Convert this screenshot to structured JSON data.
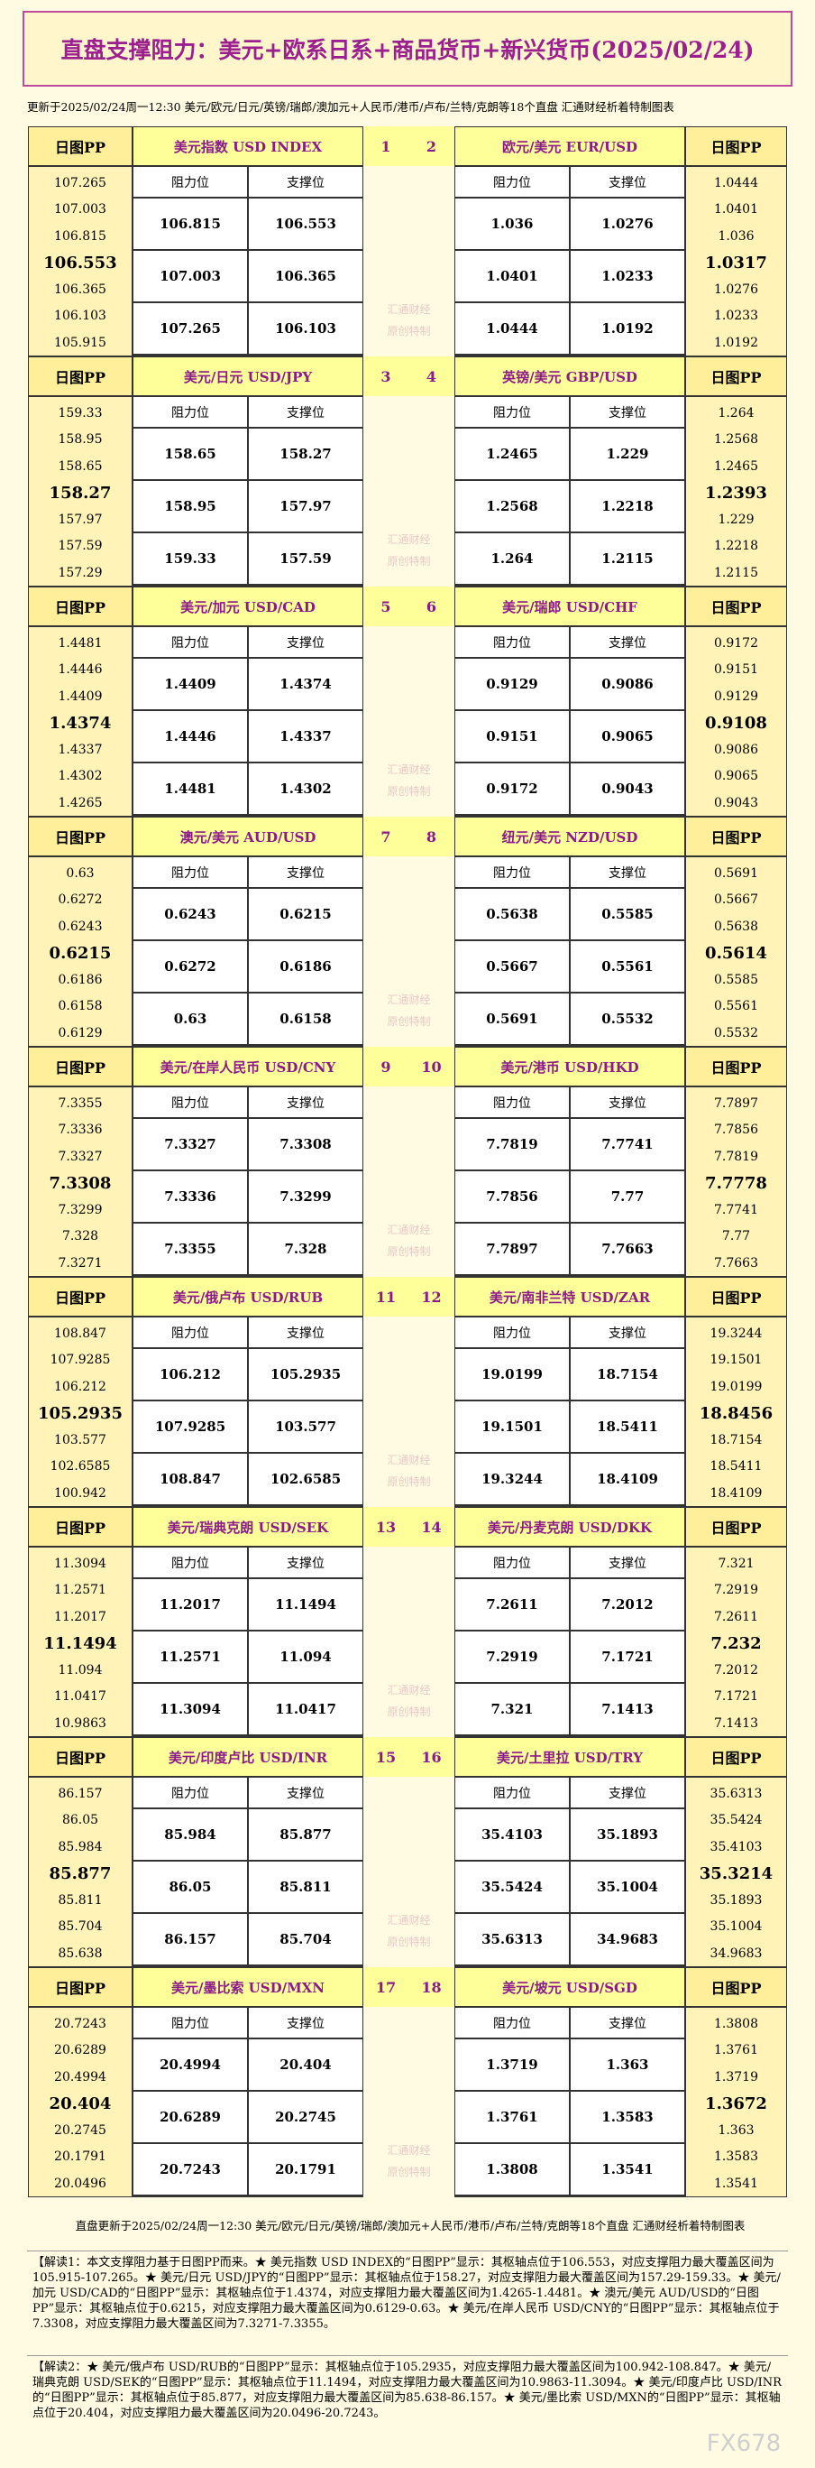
{
  "header": {
    "title": "直盘支撑阻力：美元+欧系日系+商品货币+新兴货币(2025/02/24)",
    "update": "更新于2025/02/24周一12:30 美元/欧元/日元/英镑/瑞郎/澳加元+人民币/港币/卢布/兰特/克朗等18个直盘 汇通财经析着特制图表"
  },
  "labels": {
    "pp": "日图PP",
    "resist": "阻力位",
    "support": "支撑位"
  },
  "watermark": [
    "汇通财经",
    "原创特制"
  ],
  "blocks": [
    {
      "left": {
        "num": "1",
        "name": "美元指数 USD INDEX",
        "pp": [
          "107.265",
          "107.003",
          "106.815",
          "106.553",
          "106.365",
          "106.103",
          "105.915"
        ],
        "resist": [
          "106.815",
          "107.003",
          "107.265"
        ],
        "support": [
          "106.553",
          "106.365",
          "106.103"
        ]
      },
      "right": {
        "num": "2",
        "name": "欧元/美元 EUR/USD",
        "pp": [
          "1.0444",
          "1.0401",
          "1.036",
          "1.0317",
          "1.0276",
          "1.0233",
          "1.0192"
        ],
        "resist": [
          "1.036",
          "1.0401",
          "1.0444"
        ],
        "support": [
          "1.0276",
          "1.0233",
          "1.0192"
        ]
      }
    },
    {
      "left": {
        "num": "3",
        "name": "美元/日元 USD/JPY",
        "pp": [
          "159.33",
          "158.95",
          "158.65",
          "158.27",
          "157.97",
          "157.59",
          "157.29"
        ],
        "resist": [
          "158.65",
          "158.95",
          "159.33"
        ],
        "support": [
          "158.27",
          "157.97",
          "157.59"
        ]
      },
      "right": {
        "num": "4",
        "name": "英镑/美元 GBP/USD",
        "pp": [
          "1.264",
          "1.2568",
          "1.2465",
          "1.2393",
          "1.229",
          "1.2218",
          "1.2115"
        ],
        "resist": [
          "1.2465",
          "1.2568",
          "1.264"
        ],
        "support": [
          "1.229",
          "1.2218",
          "1.2115"
        ]
      }
    },
    {
      "left": {
        "num": "5",
        "name": "美元/加元 USD/CAD",
        "pp": [
          "1.4481",
          "1.4446",
          "1.4409",
          "1.4374",
          "1.4337",
          "1.4302",
          "1.4265"
        ],
        "resist": [
          "1.4409",
          "1.4446",
          "1.4481"
        ],
        "support": [
          "1.4374",
          "1.4337",
          "1.4302"
        ]
      },
      "right": {
        "num": "6",
        "name": "美元/瑞郎 USD/CHF",
        "pp": [
          "0.9172",
          "0.9151",
          "0.9129",
          "0.9108",
          "0.9086",
          "0.9065",
          "0.9043"
        ],
        "resist": [
          "0.9129",
          "0.9151",
          "0.9172"
        ],
        "support": [
          "0.9086",
          "0.9065",
          "0.9043"
        ]
      }
    },
    {
      "left": {
        "num": "7",
        "name": "澳元/美元 AUD/USD",
        "pp": [
          "0.63",
          "0.6272",
          "0.6243",
          "0.6215",
          "0.6186",
          "0.6158",
          "0.6129"
        ],
        "resist": [
          "0.6243",
          "0.6272",
          "0.63"
        ],
        "support": [
          "0.6215",
          "0.6186",
          "0.6158"
        ]
      },
      "right": {
        "num": "8",
        "name": "纽元/美元 NZD/USD",
        "pp": [
          "0.5691",
          "0.5667",
          "0.5638",
          "0.5614",
          "0.5585",
          "0.5561",
          "0.5532"
        ],
        "resist": [
          "0.5638",
          "0.5667",
          "0.5691"
        ],
        "support": [
          "0.5585",
          "0.5561",
          "0.5532"
        ]
      }
    },
    {
      "left": {
        "num": "9",
        "name": "美元/在岸人民币 USD/CNY",
        "pp": [
          "7.3355",
          "7.3336",
          "7.3327",
          "7.3308",
          "7.3299",
          "7.328",
          "7.3271"
        ],
        "resist": [
          "7.3327",
          "7.3336",
          "7.3355"
        ],
        "support": [
          "7.3308",
          "7.3299",
          "7.328"
        ]
      },
      "right": {
        "num": "10",
        "name": "美元/港币 USD/HKD",
        "pp": [
          "7.7897",
          "7.7856",
          "7.7819",
          "7.7778",
          "7.7741",
          "7.77",
          "7.7663"
        ],
        "resist": [
          "7.7819",
          "7.7856",
          "7.7897"
        ],
        "support": [
          "7.7741",
          "7.77",
          "7.7663"
        ]
      }
    },
    {
      "left": {
        "num": "11",
        "name": "美元/俄卢布 USD/RUB",
        "pp": [
          "108.847",
          "107.9285",
          "106.212",
          "105.2935",
          "103.577",
          "102.6585",
          "100.942"
        ],
        "resist": [
          "106.212",
          "107.9285",
          "108.847"
        ],
        "support": [
          "105.2935",
          "103.577",
          "102.6585"
        ]
      },
      "right": {
        "num": "12",
        "name": "美元/南非兰特 USD/ZAR",
        "pp": [
          "19.3244",
          "19.1501",
          "19.0199",
          "18.8456",
          "18.7154",
          "18.5411",
          "18.4109"
        ],
        "resist": [
          "19.0199",
          "19.1501",
          "19.3244"
        ],
        "support": [
          "18.7154",
          "18.5411",
          "18.4109"
        ]
      }
    },
    {
      "left": {
        "num": "13",
        "name": "美元/瑞典克朗 USD/SEK",
        "pp": [
          "11.3094",
          "11.2571",
          "11.2017",
          "11.1494",
          "11.094",
          "11.0417",
          "10.9863"
        ],
        "resist": [
          "11.2017",
          "11.2571",
          "11.3094"
        ],
        "support": [
          "11.1494",
          "11.094",
          "11.0417"
        ]
      },
      "right": {
        "num": "14",
        "name": "美元/丹麦克朗 USD/DKK",
        "pp": [
          "7.321",
          "7.2919",
          "7.2611",
          "7.232",
          "7.2012",
          "7.1721",
          "7.1413"
        ],
        "resist": [
          "7.2611",
          "7.2919",
          "7.321"
        ],
        "support": [
          "7.2012",
          "7.1721",
          "7.1413"
        ]
      }
    },
    {
      "left": {
        "num": "15",
        "name": "美元/印度卢比 USD/INR",
        "pp": [
          "86.157",
          "86.05",
          "85.984",
          "85.877",
          "85.811",
          "85.704",
          "85.638"
        ],
        "resist": [
          "85.984",
          "86.05",
          "86.157"
        ],
        "support": [
          "85.877",
          "85.811",
          "85.704"
        ]
      },
      "right": {
        "num": "16",
        "name": "美元/土里拉 USD/TRY",
        "pp": [
          "35.6313",
          "35.5424",
          "35.4103",
          "35.3214",
          "35.1893",
          "35.1004",
          "34.9683"
        ],
        "resist": [
          "35.4103",
          "35.5424",
          "35.6313"
        ],
        "support": [
          "35.1893",
          "35.1004",
          "34.9683"
        ]
      }
    },
    {
      "left": {
        "num": "17",
        "name": "美元/墨比索 USD/MXN",
        "pp": [
          "20.7243",
          "20.6289",
          "20.4994",
          "20.404",
          "20.2745",
          "20.1791",
          "20.0496"
        ],
        "resist": [
          "20.4994",
          "20.6289",
          "20.7243"
        ],
        "support": [
          "20.404",
          "20.2745",
          "20.1791"
        ]
      },
      "right": {
        "num": "18",
        "name": "美元/坡元 USD/SGD",
        "pp": [
          "1.3808",
          "1.3761",
          "1.3719",
          "1.3672",
          "1.363",
          "1.3583",
          "1.3541"
        ],
        "resist": [
          "1.3719",
          "1.3761",
          "1.3808"
        ],
        "support": [
          "1.363",
          "1.3583",
          "1.3541"
        ]
      }
    }
  ],
  "footer": {
    "update": "直盘更新于2025/02/24周一12:30 美元/欧元/日元/英镑/瑞郎/澳加元+人民币/港币/卢布/兰特/克朗等18个直盘 汇通财经析着特制图表",
    "note1": "【解读1：本文支撑阻力基于日图PP而来。★ 美元指数 USD INDEX的“日图PP”显示：其枢轴点位于106.553，对应支撑阻力最大覆盖区间为105.915-107.265。★ 美元/日元 USD/JPY的“日图PP”显示：其枢轴点位于158.27，对应支撑阻力最大覆盖区间为157.29-159.33。★ 美元/加元 USD/CAD的“日图PP”显示：其枢轴点位于1.4374，对应支撑阻力最大覆盖区间为1.4265-1.4481。★ 澳元/美元 AUD/USD的“日图PP”显示：其枢轴点位于0.6215，对应支撑阻力最大覆盖区间为0.6129-0.63。★ 美元/在岸人民币 USD/CNY的“日图PP”显示：其枢轴点位于7.3308，对应支撑阻力最大覆盖区间为7.3271-7.3355。",
    "note2": "【解读2：★ 美元/俄卢布 USD/RUB的“日图PP”显示：其枢轴点位于105.2935，对应支撑阻力最大覆盖区间为100.942-108.847。★ 美元/瑞典克朗 USD/SEK的“日图PP”显示：其枢轴点位于11.1494，对应支撑阻力最大覆盖区间为10.9863-11.3094。★ 美元/印度卢比 USD/INR的“日图PP”显示：其枢轴点位于85.877，对应支撑阻力最大覆盖区间为85.638-86.157。★ 美元/墨比索 USD/MXN的“日图PP”显示：其枢轴点位于20.404，对应支撑阻力最大覆盖区间为20.0496-20.7243。",
    "logo": "FX678"
  }
}
